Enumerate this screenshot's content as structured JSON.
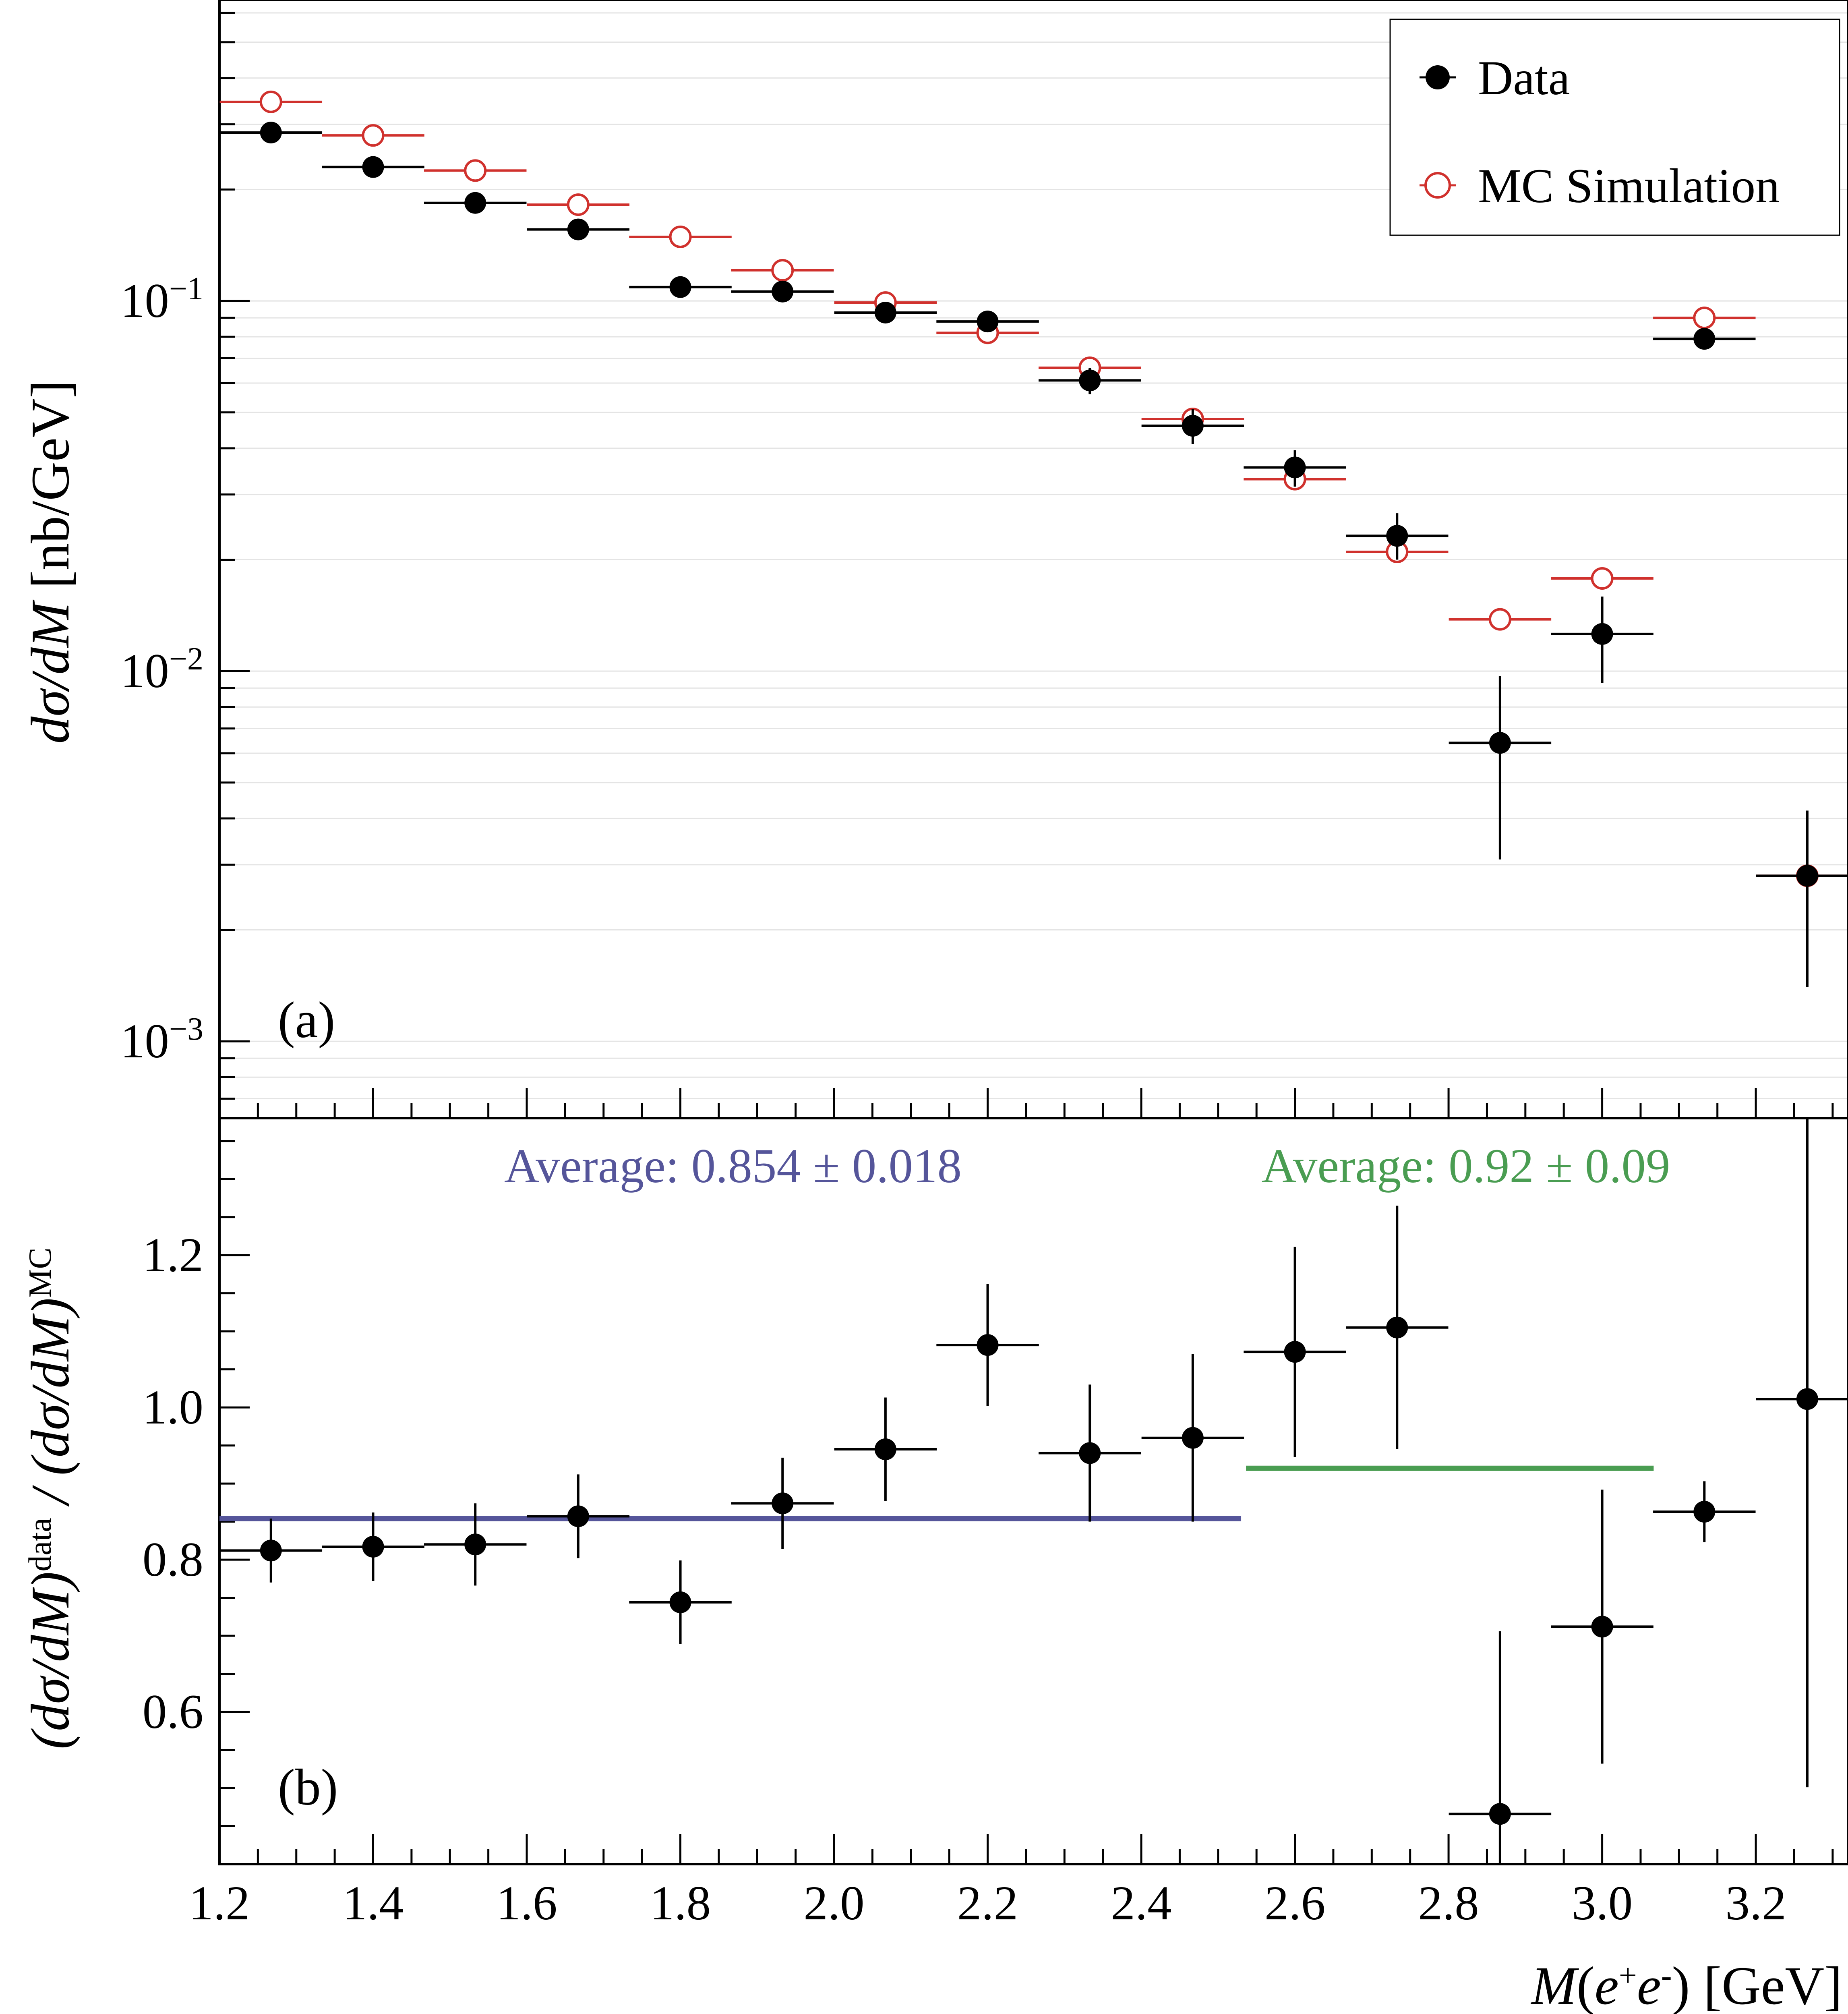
{
  "chart_data": [
    {
      "panel_label": "(a)",
      "type": "scatter",
      "yscale": "log",
      "ylim": [
        0.00062,
        0.65
      ],
      "xlim": [
        1.2,
        3.32
      ],
      "ylabel_parts": [
        "dσ/dM",
        " [nb/GeV]"
      ],
      "y_ticks": [
        {
          "value": 0.1,
          "mant": "10",
          "exp": "−1"
        },
        {
          "value": 0.01,
          "mant": "10",
          "exp": "−2"
        },
        {
          "value": 0.001,
          "mant": "10",
          "exp": "−3"
        }
      ],
      "grid": true,
      "legend_position": "top-right",
      "series": [
        {
          "name": "Data",
          "color": "#000000",
          "marker": "filled-circle",
          "x": [
            1.267,
            1.4,
            1.533,
            1.667,
            1.8,
            1.933,
            2.067,
            2.2,
            2.333,
            2.467,
            2.6,
            2.733,
            2.867,
            3.0,
            3.133,
            3.267
          ],
          "y": [
            0.285,
            0.23,
            0.184,
            0.156,
            0.109,
            0.106,
            0.093,
            0.088,
            0.061,
            0.046,
            0.0355,
            0.0232,
            0.0064,
            0.0126,
            0.079,
            0.0028
          ],
          "y_err_low": [
            0.004,
            0.004,
            0.003,
            0.003,
            0.003,
            0.003,
            0.003,
            0.004,
            0.005,
            0.005,
            0.004,
            0.0032,
            0.0033,
            0.0033,
            0.003,
            0.0014
          ],
          "y_err_high": [
            0.004,
            0.004,
            0.003,
            0.003,
            0.003,
            0.003,
            0.003,
            0.004,
            0.005,
            0.005,
            0.004,
            0.0035,
            0.0033,
            0.0033,
            0.003,
            0.0014
          ],
          "x_halfwidth": 0.0667
        },
        {
          "name": "MC Simulation",
          "color": "#d0312d",
          "marker": "open-circle",
          "x": [
            1.267,
            1.4,
            1.533,
            1.667,
            1.8,
            1.933,
            2.067,
            2.2,
            2.333,
            2.467,
            2.6,
            2.733,
            2.867,
            3.0,
            3.133,
            3.267
          ],
          "y": [
            0.345,
            0.28,
            0.225,
            0.182,
            0.149,
            0.121,
            0.099,
            0.082,
            0.066,
            0.048,
            0.033,
            0.021,
            0.0138,
            0.0178,
            0.09,
            0.0028
          ],
          "x_halfwidth": 0.0667
        }
      ]
    },
    {
      "panel_label": "(b)",
      "type": "scatter",
      "ylim": [
        0.4,
        1.38
      ],
      "xlim": [
        1.2,
        3.32
      ],
      "xlabel_parts": [
        "M",
        "(",
        "e",
        "+",
        "e",
        "-",
        ") [GeV]"
      ],
      "ylabel_parts": [
        "(dσ/dM)",
        "data",
        " / (dσ/dM)",
        "MC"
      ],
      "x_ticks": [
        "1.2",
        "1.4",
        "1.6",
        "1.8",
        "2.0",
        "2.2",
        "2.4",
        "2.6",
        "2.8",
        "3.0",
        "3.2"
      ],
      "y_ticks": [
        "0.6",
        "0.8",
        "1.0",
        "1.2"
      ],
      "series": [
        {
          "name": "",
          "color": "#000000",
          "marker": "filled-circle",
          "x": [
            1.267,
            1.4,
            1.533,
            1.667,
            1.8,
            1.933,
            2.067,
            2.2,
            2.333,
            2.467,
            2.6,
            2.733,
            2.867,
            3.0,
            3.133,
            3.267
          ],
          "y": [
            0.812,
            0.817,
            0.82,
            0.857,
            0.744,
            0.874,
            0.945,
            1.082,
            0.94,
            0.96,
            1.073,
            1.105,
            0.466,
            0.712,
            0.863,
            1.011
          ],
          "y_err": [
            0.042,
            0.045,
            0.054,
            0.055,
            0.055,
            0.06,
            0.068,
            0.08,
            0.09,
            0.11,
            0.138,
            0.16,
            0.24,
            0.18,
            0.04,
            0.51
          ],
          "x_halfwidth": 0.0667
        }
      ],
      "averages": [
        {
          "label": "Average: 0.854 ± 0.018",
          "value": 0.854,
          "x_range": [
            1.2,
            2.53
          ],
          "color": "#55559a"
        },
        {
          "label": "Average: 0.92 ± 0.09",
          "value": 0.92,
          "x_range": [
            2.53,
            3.067
          ],
          "color": "#4a9d52"
        }
      ]
    }
  ]
}
